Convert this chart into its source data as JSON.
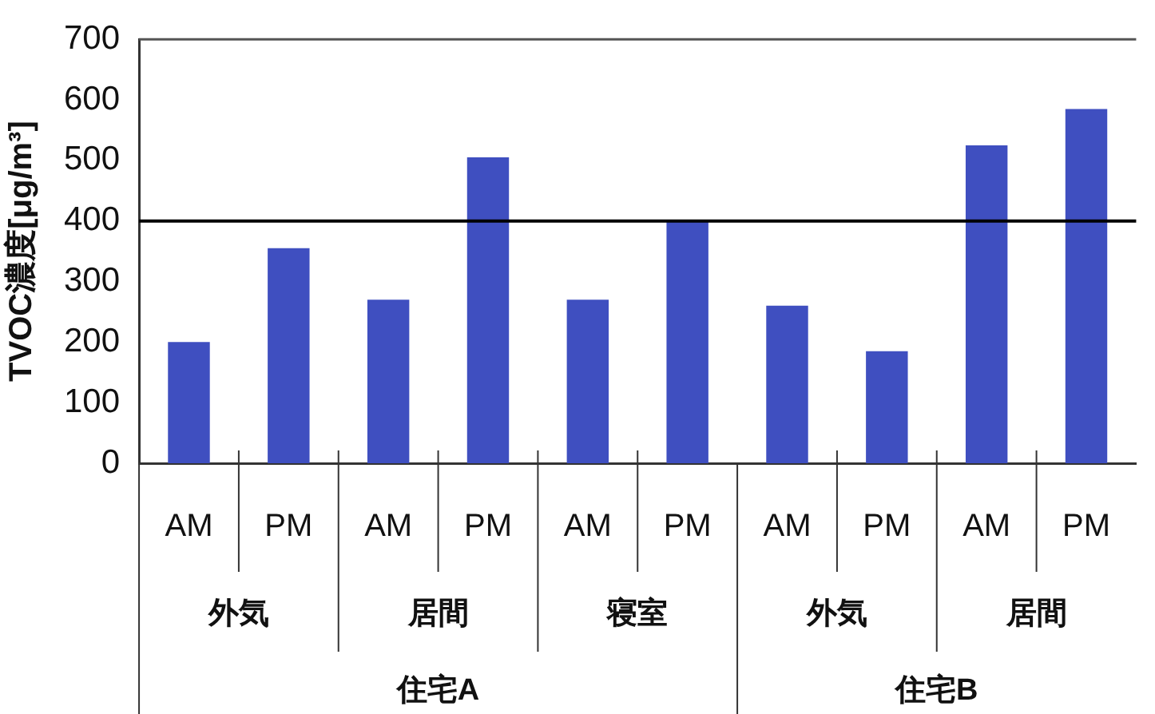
{
  "chart_data": {
    "type": "bar",
    "ylabel": "TVOC濃度[μg/m³]",
    "categories": [
      "AM",
      "PM",
      "AM",
      "PM",
      "AM",
      "PM",
      "AM",
      "PM",
      "AM",
      "PM"
    ],
    "values": [
      200,
      355,
      270,
      505,
      270,
      400,
      260,
      185,
      525,
      585
    ],
    "color": "#3f4fc0",
    "ylim": [
      0,
      700
    ],
    "yticks": [
      0,
      100,
      200,
      300,
      400,
      500,
      600,
      700
    ],
    "ref_lines": [
      {
        "axis": "y",
        "value": 400,
        "color": "#000000"
      }
    ],
    "annotations": [
      "外気",
      "居間",
      "寝室",
      "外気",
      "居間",
      "住宅A",
      "住宅B"
    ],
    "grid": false,
    "legend": false
  }
}
